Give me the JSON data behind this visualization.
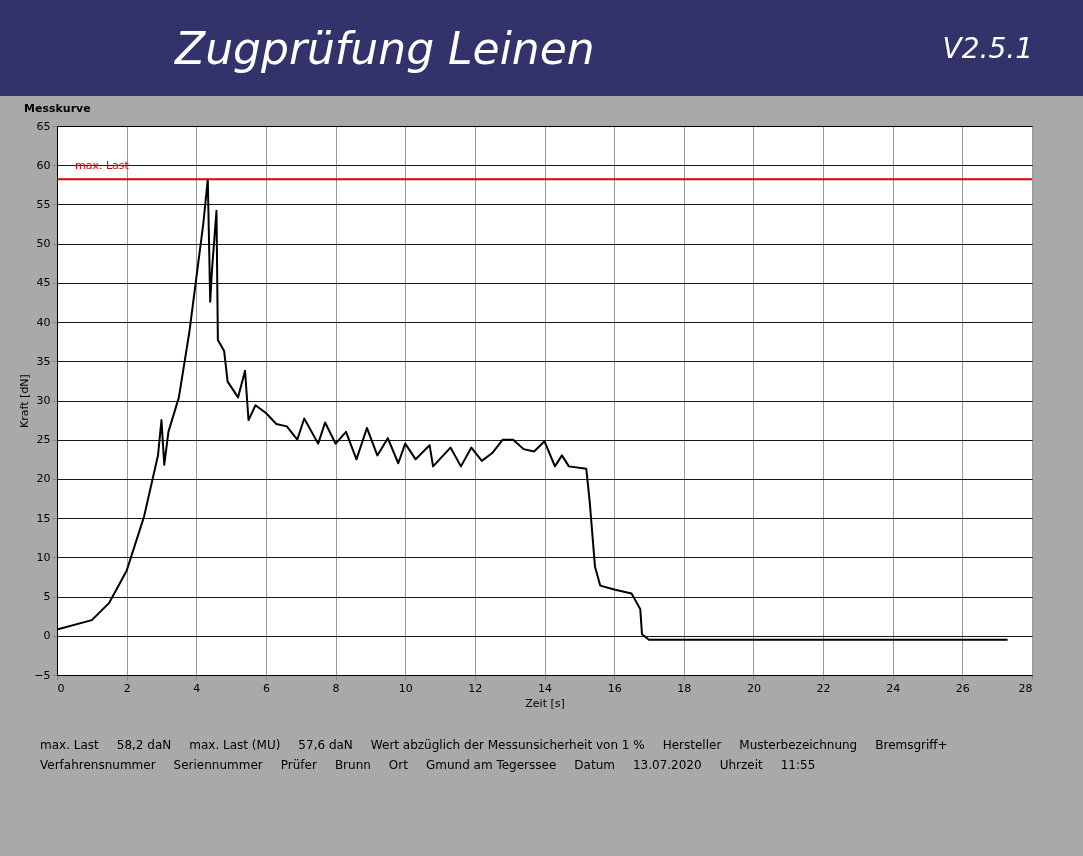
{
  "chart_data": {
    "type": "line",
    "title": "Zugprüfung Leinen",
    "subtitle": "V2.5.1",
    "xlabel": "Zeit [s]",
    "ylabel": "Kraft [dN]",
    "x": [
      0,
      1,
      1.5,
      2,
      2.5,
      2.9,
      3.0,
      3.08,
      3.2,
      3.5,
      3.8,
      4.0,
      4.2,
      4.33,
      4.4,
      4.45,
      4.58,
      4.62,
      4.8,
      4.9,
      5.2,
      5.4,
      5.5,
      5.7,
      6,
      6.3,
      6.6,
      6.9,
      7.1,
      7.5,
      7.7,
      8,
      8.3,
      8.6,
      8.9,
      9.2,
      9.5,
      9.8,
      10,
      10.3,
      10.7,
      10.8,
      11.3,
      11.6,
      11.9,
      12.2,
      12.5,
      12.8,
      13.1,
      13.4,
      13.7,
      14,
      14.3,
      14.5,
      14.7,
      15.2,
      15.3,
      15.45,
      15.6,
      16,
      16.5,
      16.75,
      16.8,
      17,
      20,
      24,
      27.3
    ],
    "series": [
      {
        "color": "#000000",
        "values": [
          0.8,
          2,
          4.2,
          8.3,
          15.2,
          23,
          27.5,
          21.8,
          26,
          30.4,
          38.7,
          45.6,
          52.5,
          58.2,
          42.6,
          46.6,
          54.2,
          37.7,
          36.3,
          32.4,
          30.4,
          33.8,
          27.5,
          29.4,
          28.4,
          27,
          26.7,
          25,
          27.7,
          24.5,
          27.2,
          24.5,
          26,
          22.5,
          26.5,
          23,
          25.2,
          22,
          24.5,
          22.5,
          24.3,
          21.6,
          24,
          21.6,
          24,
          22.3,
          23.3,
          25,
          25,
          23.8,
          23.5,
          24.8,
          21.6,
          23,
          21.6,
          21.3,
          17,
          8.8,
          6.4,
          5.9,
          5.4,
          3.4,
          0.2,
          -0.5,
          -0.5,
          -0.5,
          -0.5
        ]
      }
    ],
    "xlim": [
      0,
      28
    ],
    "xticks": [
      0,
      2,
      4,
      6,
      8,
      10,
      12,
      14,
      16,
      18,
      20,
      22,
      24,
      26,
      28
    ],
    "ylim": [
      -5,
      65
    ],
    "yticks": [
      -5,
      0,
      5,
      10,
      15,
      20,
      25,
      30,
      35,
      40,
      45,
      50,
      55,
      60,
      65
    ],
    "grid": true,
    "legend": false,
    "line_style": "solid",
    "marker": "none",
    "ref_lines": [
      {
        "axis": "y",
        "value": 58.2,
        "label": "max. Last",
        "color": "#e00000"
      }
    ],
    "annotations": [
      "Messkurve",
      "max. Last",
      "58,2 daN",
      "max. Last (MU)",
      "57,6 daN",
      "Wert abzüglich der Messunsicherheit von 1 %",
      "Hersteller",
      "Musterbezeichnung",
      "Bremsgriff+",
      "Verfahrensnummer",
      "Seriennummer",
      "Prüfer",
      "Brunn",
      "Ort",
      "Gmund am Tegerssee",
      "Datum",
      "13.07.2020",
      "Uhrzeit",
      "11:55"
    ]
  }
}
